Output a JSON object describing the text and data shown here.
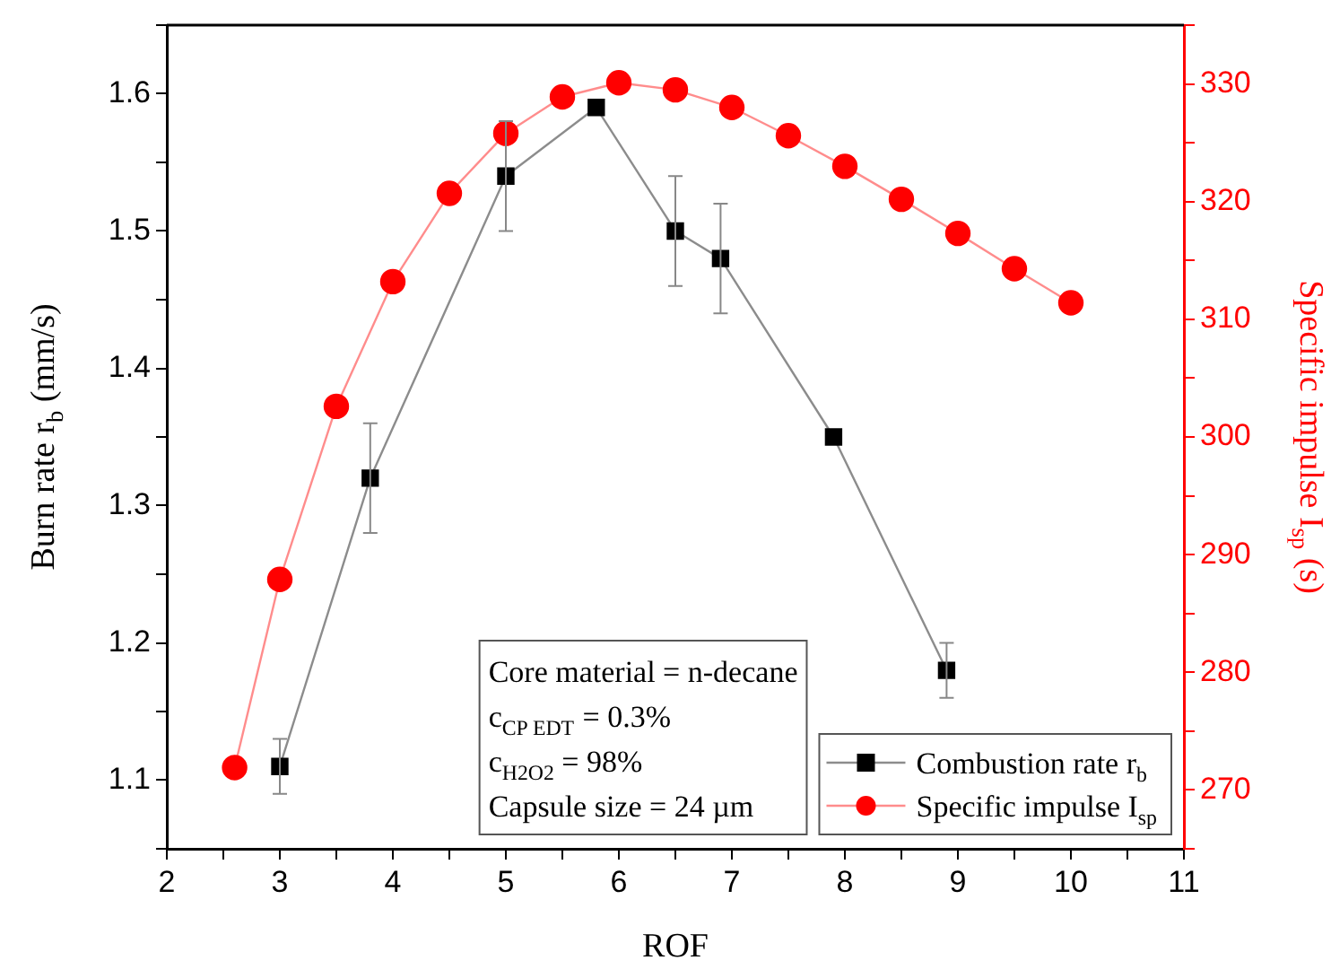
{
  "chart_data": {
    "type": "line",
    "xlabel": "ROF",
    "ylabel": "Burn rate r$_{b}$ (mm/s)",
    "y2label": "Specific impulse I$_{sp}$ (s)",
    "xlim": [
      2,
      11
    ],
    "xticks": [
      2,
      {
        "value": 2.5,
        "label": null
      },
      3,
      {
        "value": 3.5,
        "label": null
      },
      4,
      {
        "value": 4.5,
        "label": null
      },
      5,
      {
        "value": 5.5,
        "label": null
      },
      6,
      {
        "value": 6.5,
        "label": null
      },
      7,
      {
        "value": 7.5,
        "label": null
      },
      8,
      {
        "value": 8.5,
        "label": null
      },
      9,
      {
        "value": 9.5,
        "label": null
      },
      10,
      {
        "value": 10.5,
        "label": null
      },
      11
    ],
    "ylim": [
      1.05,
      1.65
    ],
    "yticks": [
      {
        "value": 1.05,
        "label": null
      },
      1.1,
      {
        "value": 1.15,
        "label": null
      },
      1.2,
      {
        "value": 1.25,
        "label": null
      },
      1.3,
      {
        "value": 1.35,
        "label": null
      },
      1.4,
      {
        "value": 1.45,
        "label": null
      },
      1.5,
      {
        "value": 1.55,
        "label": null
      },
      1.6,
      {
        "value": 1.65,
        "label": null
      }
    ],
    "y2lim": [
      265,
      335
    ],
    "y2ticks": [
      {
        "value": 265,
        "label": null
      },
      270,
      {
        "value": 275,
        "label": null
      },
      280,
      {
        "value": 285,
        "label": null
      },
      290,
      {
        "value": 295,
        "label": null
      },
      300,
      {
        "value": 305,
        "label": null
      },
      310,
      {
        "value": 315,
        "label": null
      },
      320,
      {
        "value": 325,
        "label": null
      },
      330,
      {
        "value": 335,
        "label": null
      }
    ],
    "grid": false,
    "legend": "bottom right",
    "annotations": [
      "Core material = n-decane",
      "c$_{CP EDT}$ = 0.3%",
      "c$_{H2O2}$ = 98%",
      "Capsule size = 24 µm"
    ],
    "series": [
      {
        "name": "Combustion rate r$_{b}$",
        "color": "#000000",
        "marker": "square",
        "x": [
          3,
          3.8,
          5,
          5.8,
          6.5,
          6.9,
          7.9,
          8.9
        ],
        "values": [
          1.11,
          1.32,
          1.54,
          1.59,
          1.5,
          1.48,
          1.35,
          1.18
        ],
        "errors": [
          0.02,
          0.04,
          0.04,
          null,
          0.04,
          0.04,
          null,
          0.02
        ]
      },
      {
        "name": "Specific impulse I$_{sp}$",
        "color": "#ff0000",
        "marker": "circle",
        "axis": "y2",
        "x": [
          2.6,
          3,
          3.5,
          4,
          4.5,
          5,
          5.5,
          6,
          6.5,
          7,
          7.5,
          8,
          8.5,
          9,
          9.5,
          10
        ],
        "values": [
          271.9,
          287.9,
          302.6,
          313.2,
          320.7,
          325.8,
          328.9,
          330.1,
          329.5,
          328,
          325.6,
          323,
          320.2,
          317.3,
          314.3,
          311.4
        ]
      }
    ]
  }
}
